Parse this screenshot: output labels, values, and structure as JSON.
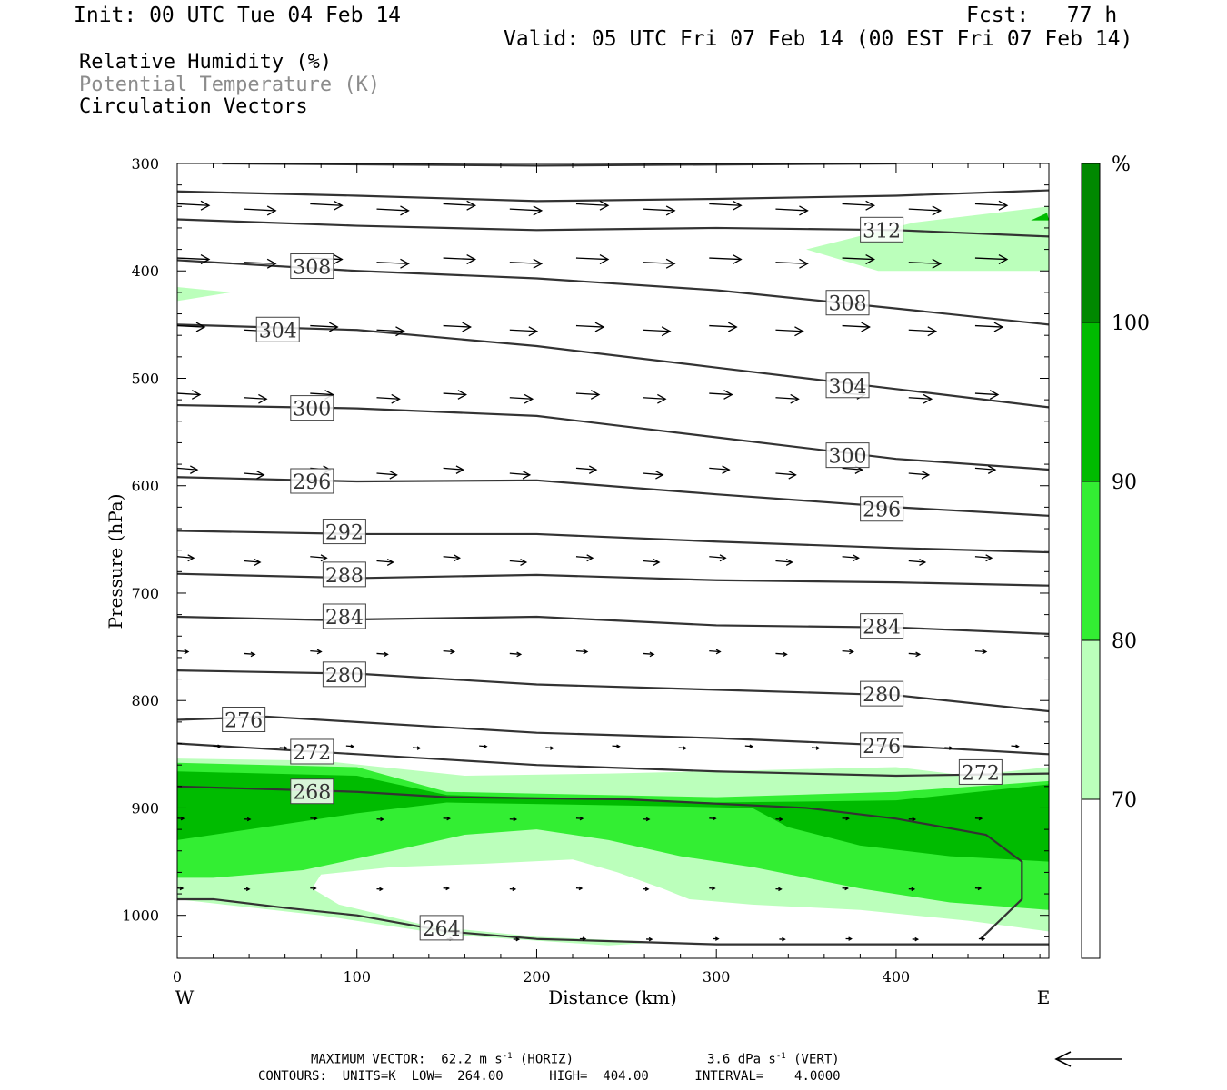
{
  "header": {
    "init": "Init: 00 UTC Tue 04 Feb 14",
    "fcst": "Fcst:   77 h",
    "valid": "Valid: 05 UTC Fri 07 Feb 14 (00 EST Fri 07 Feb 14)"
  },
  "legend": {
    "rh": "Relative Humidity (%)",
    "theta": "Potential Temperature (K)",
    "vectors": "Circulation Vectors",
    "theta_color": "#8c8c8c"
  },
  "footer": {
    "max_vector": "MAXIMUM VECTOR:  62.2 m s",
    "max_vector_exp": "-1",
    "max_vector_horiz": " (HORIZ)",
    "max_vector_vert": "3.6 dPa s",
    "max_vector_vert_exp": "-1",
    "max_vector_vert_tail": " (VERT)",
    "contours": "CONTOURS:  UNITS=K  LOW=  264.00      HIGH=  404.00      INTERVAL=    4.0000"
  },
  "chart_data": {
    "type": "cross-section",
    "xlabel": "Distance (km)",
    "ylabel": "Pressure (hPa)",
    "xlim": [
      0,
      485
    ],
    "ylim": [
      1040,
      300
    ],
    "x_ticks": [
      0,
      100,
      200,
      300,
      400
    ],
    "y_ticks": [
      300,
      400,
      500,
      600,
      700,
      800,
      900,
      1000
    ],
    "x_end_labels": {
      "left": "W",
      "right": "E"
    },
    "colorbar": {
      "unit": "%",
      "levels": [
        70,
        80,
        90,
        100
      ],
      "colors": [
        "#ffffff",
        "#bbffbb",
        "#33ee33",
        "#00bb00",
        "#008800"
      ]
    },
    "rh_fills": [
      {
        "level": 70,
        "color": "#bbffbb",
        "polygon": [
          [
            0,
            854
          ],
          [
            80,
            856
          ],
          [
            160,
            870
          ],
          [
            240,
            868
          ],
          [
            320,
            865
          ],
          [
            400,
            862
          ],
          [
            440,
            870
          ],
          [
            485,
            862
          ],
          [
            485,
            1015
          ],
          [
            440,
            1005
          ],
          [
            380,
            995
          ],
          [
            320,
            990
          ],
          [
            285,
            985
          ],
          [
            270,
            975
          ],
          [
            245,
            960
          ],
          [
            220,
            948
          ],
          [
            170,
            952
          ],
          [
            120,
            955
          ],
          [
            80,
            962
          ],
          [
            75,
            975
          ],
          [
            90,
            990
          ],
          [
            140,
            1010
          ],
          [
            200,
            1020
          ],
          [
            270,
            1025
          ],
          [
            240,
            1028
          ],
          [
            150,
            1018
          ],
          [
            80,
            1000
          ],
          [
            0,
            985
          ]
        ]
      },
      {
        "level": 70,
        "color": "#bbffbb",
        "polygon": [
          [
            350,
            380
          ],
          [
            410,
            355
          ],
          [
            485,
            340
          ],
          [
            485,
            400
          ],
          [
            440,
            400
          ],
          [
            390,
            400
          ]
        ]
      },
      {
        "level": 70,
        "color": "#bbffbb",
        "polygon": [
          [
            0,
            415
          ],
          [
            30,
            420
          ],
          [
            0,
            428
          ]
        ]
      },
      {
        "level": 80,
        "color": "#33ee33",
        "polygon": [
          [
            0,
            858
          ],
          [
            100,
            862
          ],
          [
            150,
            885
          ],
          [
            300,
            890
          ],
          [
            400,
            885
          ],
          [
            485,
            875
          ],
          [
            485,
            995
          ],
          [
            430,
            988
          ],
          [
            380,
            975
          ],
          [
            320,
            955
          ],
          [
            280,
            945
          ],
          [
            240,
            930
          ],
          [
            200,
            920
          ],
          [
            160,
            925
          ],
          [
            120,
            940
          ],
          [
            70,
            958
          ],
          [
            20,
            965
          ],
          [
            0,
            965
          ]
        ]
      },
      {
        "level": 90,
        "color": "#00bb00",
        "polygon": [
          [
            0,
            866
          ],
          [
            100,
            870
          ],
          [
            150,
            888
          ],
          [
            300,
            895
          ],
          [
            400,
            893
          ],
          [
            485,
            878
          ],
          [
            485,
            950
          ],
          [
            430,
            945
          ],
          [
            380,
            935
          ],
          [
            340,
            918
          ],
          [
            320,
            900
          ],
          [
            260,
            898
          ],
          [
            150,
            895
          ],
          [
            100,
            905
          ],
          [
            60,
            915
          ],
          [
            0,
            930
          ]
        ]
      },
      {
        "level": 90,
        "color": "#00bb00",
        "polygon": [
          [
            484,
            346
          ],
          [
            475,
            353
          ],
          [
            485,
            353
          ]
        ]
      }
    ],
    "theta_contours": [
      {
        "label": "264",
        "points": [
          [
            0,
            985
          ],
          [
            20,
            985
          ],
          [
            60,
            993
          ],
          [
            100,
            1000
          ],
          [
            150,
            1015
          ],
          [
            200,
            1022
          ],
          [
            260,
            1025
          ],
          [
            300,
            1027
          ],
          [
            485,
            1027
          ]
        ],
        "label_at": [
          147,
          1012
        ]
      },
      {
        "label": "268",
        "points": [
          [
            0,
            880
          ],
          [
            100,
            885
          ],
          [
            150,
            890
          ],
          [
            250,
            892
          ],
          [
            350,
            900
          ],
          [
            400,
            910
          ],
          [
            450,
            925
          ],
          [
            470,
            950
          ],
          [
            470,
            985
          ],
          [
            447,
            1022
          ]
        ],
        "label_at": [
          75,
          885
        ]
      },
      {
        "label": "272",
        "points": [
          [
            0,
            840
          ],
          [
            100,
            850
          ],
          [
            200,
            860
          ],
          [
            300,
            866
          ],
          [
            400,
            870
          ],
          [
            485,
            868
          ]
        ],
        "label_at": [
          75,
          848
        ],
        "label2": "272",
        "label2_at": [
          447,
          867
        ]
      },
      {
        "label": "276",
        "points": [
          [
            0,
            818
          ],
          [
            50,
            815
          ],
          [
            100,
            820
          ],
          [
            200,
            830
          ],
          [
            300,
            835
          ],
          [
            400,
            842
          ],
          [
            485,
            850
          ]
        ],
        "label_at": [
          37,
          818
        ],
        "label2": "276",
        "label2_at": [
          392,
          842
        ]
      },
      {
        "label": "280",
        "points": [
          [
            0,
            772
          ],
          [
            100,
            775
          ],
          [
            200,
            785
          ],
          [
            300,
            790
          ],
          [
            400,
            795
          ],
          [
            485,
            810
          ]
        ],
        "label_at": [
          93,
          776
        ],
        "label2": "280",
        "label2_at": [
          392,
          794
        ]
      },
      {
        "label": "284",
        "points": [
          [
            0,
            722
          ],
          [
            80,
            725
          ],
          [
            200,
            722
          ],
          [
            300,
            730
          ],
          [
            400,
            732
          ],
          [
            485,
            738
          ]
        ],
        "label_at": [
          93,
          722
        ],
        "label2": "284",
        "label2_at": [
          392,
          731
        ]
      },
      {
        "label": "288",
        "points": [
          [
            0,
            682
          ],
          [
            100,
            686
          ],
          [
            200,
            683
          ],
          [
            300,
            688
          ],
          [
            400,
            690
          ],
          [
            485,
            693
          ]
        ],
        "label_at": [
          93,
          683
        ]
      },
      {
        "label": "292",
        "points": [
          [
            0,
            642
          ],
          [
            100,
            645
          ],
          [
            200,
            645
          ],
          [
            300,
            652
          ],
          [
            400,
            658
          ],
          [
            485,
            662
          ]
        ],
        "label_at": [
          93,
          643
        ]
      },
      {
        "label": "296",
        "points": [
          [
            0,
            592
          ],
          [
            100,
            596
          ],
          [
            200,
            595
          ],
          [
            300,
            608
          ],
          [
            400,
            620
          ],
          [
            485,
            628
          ]
        ],
        "label_at": [
          75,
          596
        ],
        "label2": "296",
        "label2_at": [
          392,
          622
        ]
      },
      {
        "label": "300",
        "points": [
          [
            0,
            525
          ],
          [
            100,
            528
          ],
          [
            200,
            535
          ],
          [
            300,
            555
          ],
          [
            400,
            575
          ],
          [
            485,
            585
          ]
        ],
        "label_at": [
          75,
          528
        ],
        "label2": "300",
        "label2_at": [
          373,
          572
        ]
      },
      {
        "label": "304",
        "points": [
          [
            0,
            450
          ],
          [
            100,
            455
          ],
          [
            200,
            470
          ],
          [
            300,
            490
          ],
          [
            400,
            510
          ],
          [
            485,
            527
          ]
        ],
        "label_at": [
          56,
          455
        ],
        "label2": "304",
        "label2_at": [
          373,
          507
        ]
      },
      {
        "label": "308",
        "points": [
          [
            0,
            390
          ],
          [
            100,
            400
          ],
          [
            200,
            407
          ],
          [
            300,
            418
          ],
          [
            400,
            435
          ],
          [
            485,
            450
          ]
        ],
        "label_at": [
          75,
          396
        ],
        "label2": "308",
        "label2_at": [
          373,
          430
        ]
      },
      {
        "label": "312",
        "points": [
          [
            0,
            352
          ],
          [
            100,
            358
          ],
          [
            200,
            362
          ],
          [
            300,
            360
          ],
          [
            400,
            362
          ],
          [
            485,
            368
          ]
        ],
        "label_at": [
          392,
          362
        ]
      },
      {
        "label": "",
        "points": [
          [
            0,
            326
          ],
          [
            100,
            330
          ],
          [
            200,
            335
          ],
          [
            300,
            333
          ],
          [
            400,
            330
          ],
          [
            485,
            325
          ]
        ]
      },
      {
        "label": "",
        "points": [
          [
            25,
            300
          ],
          [
            200,
            302
          ],
          [
            400,
            300
          ]
        ]
      }
    ],
    "vector_rows": [
      {
        "p": 340,
        "x_start": 0,
        "dx": 37,
        "length": 35,
        "dp": 1.2
      },
      {
        "p": 390,
        "x_start": 0,
        "dx": 37,
        "length": 35,
        "dp": 1.0
      },
      {
        "p": 453,
        "x_start": 0,
        "dx": 37,
        "length": 30,
        "dp": 1.0
      },
      {
        "p": 516,
        "x_start": 0,
        "dx": 37,
        "length": 25,
        "dp": 1.0
      },
      {
        "p": 586,
        "x_start": 0,
        "dx": 37,
        "length": 22,
        "dp": 1.2
      },
      {
        "p": 668,
        "x_start": 0,
        "dx": 37,
        "length": 18,
        "dp": 1.0
      },
      {
        "p": 755,
        "x_start": 0,
        "dx": 37,
        "length": 12,
        "dp": 0.6
      },
      {
        "p": 843,
        "x_start": 20,
        "dx": 37,
        "length": 8,
        "dp": 0.4
      },
      {
        "p": 910,
        "x_start": 0,
        "dx": 37,
        "length": 7,
        "dp": 0.2
      },
      {
        "p": 975,
        "x_start": 0,
        "dx": 37,
        "length": 6,
        "dp": 0.2
      },
      {
        "p": 1022,
        "x_start": 150,
        "dx": 37,
        "length": 6,
        "dp": 0.1
      }
    ],
    "reference_vector": "left-arrow"
  }
}
